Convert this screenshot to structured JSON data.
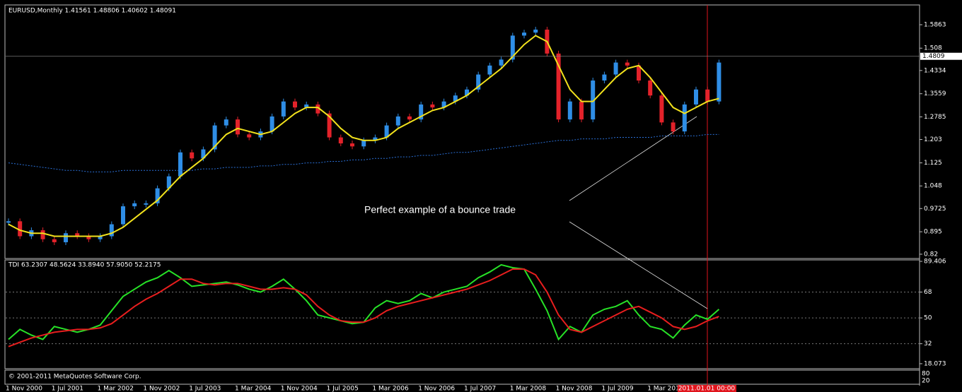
{
  "chart_data": [
    {
      "type": "candlestick",
      "title": "EURUSD,Monthly  1.41561 1.48806 1.40602 1.48091",
      "annotation": "Perfect example of a bounce trade",
      "cursor_label": "2011.01.01 00:00",
      "last_price": 1.48091,
      "last_price_label": "1.4809",
      "up_color": "#2f8ee6",
      "down_color": "#e3222a",
      "categories": [
        "1 Nov 2000",
        null,
        null,
        null,
        "1 Jul 2001",
        null,
        null,
        null,
        "1 Mar 2002",
        null,
        null,
        null,
        "1 Nov 2002",
        null,
        null,
        null,
        "1 Jul 2003",
        null,
        null,
        null,
        "1 Mar 2004",
        null,
        null,
        null,
        "1 Nov 2004",
        null,
        null,
        null,
        "1 Jul 2005",
        null,
        null,
        null,
        "1 Mar 2006",
        null,
        null,
        null,
        "1 Nov 2006",
        null,
        null,
        null,
        "1 Jul 2007",
        null,
        null,
        null,
        "1 Mar 2008",
        null,
        null,
        null,
        "1 Nov 2008",
        null,
        null,
        null,
        "1 Jul 2009",
        null,
        null,
        null,
        "1 Mar 2010",
        null,
        null,
        null,
        null,
        null,
        null
      ],
      "values": [
        0.93,
        0.88,
        0.9,
        0.87,
        0.86,
        0.89,
        0.88,
        0.87,
        0.88,
        0.92,
        0.98,
        0.99,
        0.99,
        1.04,
        1.08,
        1.16,
        1.14,
        1.17,
        1.25,
        1.27,
        1.22,
        1.21,
        1.23,
        1.28,
        1.33,
        1.31,
        1.32,
        1.29,
        1.21,
        1.19,
        1.18,
        1.2,
        1.21,
        1.25,
        1.28,
        1.27,
        1.32,
        1.31,
        1.33,
        1.35,
        1.37,
        1.42,
        1.45,
        1.47,
        1.55,
        1.56,
        1.57,
        1.49,
        1.27,
        1.33,
        1.27,
        1.4,
        1.42,
        1.46,
        1.45,
        1.4,
        1.35,
        1.26,
        1.23,
        1.32,
        1.37,
        1.33,
        1.46
      ],
      "series": [
        {
          "color": "#f2e21c",
          "dash": false,
          "values": [
            0.92,
            0.9,
            0.89,
            0.89,
            0.88,
            0.88,
            0.88,
            0.88,
            0.88,
            0.89,
            0.91,
            0.94,
            0.97,
            1.0,
            1.04,
            1.08,
            1.11,
            1.14,
            1.18,
            1.22,
            1.24,
            1.23,
            1.22,
            1.23,
            1.26,
            1.29,
            1.31,
            1.31,
            1.28,
            1.24,
            1.21,
            1.2,
            1.2,
            1.21,
            1.24,
            1.26,
            1.28,
            1.3,
            1.31,
            1.33,
            1.35,
            1.38,
            1.41,
            1.44,
            1.48,
            1.52,
            1.55,
            1.53,
            1.45,
            1.37,
            1.33,
            1.33,
            1.37,
            1.41,
            1.44,
            1.45,
            1.41,
            1.36,
            1.31,
            1.29,
            1.31,
            1.33,
            1.34
          ]
        },
        {
          "color": "#2a6fd6",
          "dash": true,
          "values": [
            1.125,
            1.12,
            1.115,
            1.11,
            1.105,
            1.1,
            1.1,
            1.095,
            1.095,
            1.095,
            1.1,
            1.1,
            1.1,
            1.1,
            1.1,
            1.1,
            1.1,
            1.105,
            1.105,
            1.11,
            1.11,
            1.11,
            1.115,
            1.115,
            1.12,
            1.12,
            1.125,
            1.125,
            1.13,
            1.13,
            1.135,
            1.135,
            1.14,
            1.14,
            1.145,
            1.145,
            1.15,
            1.15,
            1.155,
            1.16,
            1.16,
            1.165,
            1.17,
            1.175,
            1.18,
            1.185,
            1.19,
            1.195,
            1.2,
            1.2,
            1.205,
            1.205,
            1.205,
            1.21,
            1.21,
            1.21,
            1.21,
            1.215,
            1.215,
            1.215,
            1.215,
            1.22,
            1.22
          ]
        }
      ],
      "ylim": [
        0.808,
        1.65
      ],
      "yticks": [
        1.5863,
        1.508,
        1.4334,
        1.3559,
        1.2785,
        1.203,
        1.125,
        1.048,
        0.9725,
        0.895,
        0.82
      ]
    },
    {
      "type": "line",
      "title": "TDI 63.2307 48.5624 33.8940 57.9050 52.2175",
      "series": [
        {
          "color": "#27e227",
          "values": [
            35,
            42,
            38,
            35,
            44,
            42,
            40,
            42,
            45,
            55,
            65,
            70,
            75,
            78,
            83,
            78,
            72,
            73,
            74,
            75,
            73,
            70,
            68,
            72,
            77,
            70,
            62,
            52,
            50,
            48,
            46,
            47,
            57,
            62,
            60,
            62,
            67,
            64,
            68,
            70,
            72,
            78,
            82,
            87,
            85,
            84,
            70,
            55,
            35,
            44,
            40,
            52,
            56,
            58,
            62,
            52,
            44,
            42,
            36,
            45,
            52,
            49,
            56
          ]
        },
        {
          "color": "#e81e1e",
          "values": [
            30,
            33,
            36,
            38,
            40,
            41,
            42,
            42,
            43,
            46,
            52,
            58,
            63,
            67,
            72,
            77,
            77,
            74,
            73,
            74,
            74,
            72,
            70,
            70,
            71,
            70,
            66,
            58,
            52,
            48,
            47,
            47,
            50,
            55,
            58,
            60,
            62,
            64,
            66,
            68,
            70,
            73,
            76,
            80,
            84,
            84,
            80,
            68,
            52,
            42,
            40,
            44,
            48,
            52,
            56,
            58,
            54,
            50,
            44,
            42,
            44,
            48,
            51
          ]
        }
      ],
      "ylim": [
        14.6,
        90.4
      ],
      "yticks": [
        89.406,
        68,
        50,
        32,
        18.073
      ],
      "levels": [
        68,
        50,
        32
      ]
    }
  ],
  "footer": {
    "copyright": "© 2001-2011 MetaQuotes Software Corp.",
    "rsi_ticks": [
      "80",
      "20"
    ]
  }
}
